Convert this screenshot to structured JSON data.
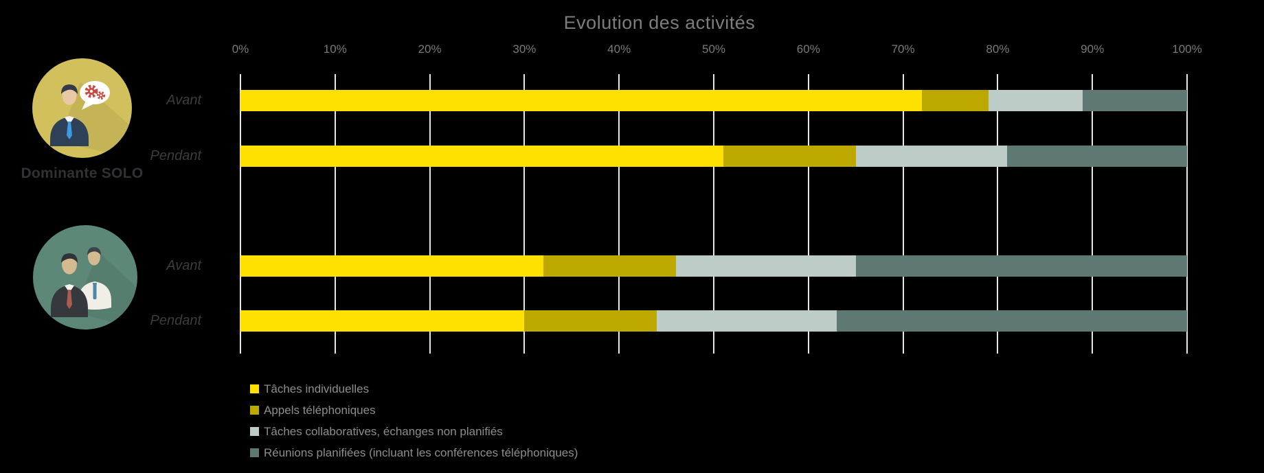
{
  "chart_data": {
    "type": "bar",
    "variant": "horizontal-100pct-stacked",
    "title": "Evolution des activités",
    "x_axis": {
      "min": 0,
      "max": 100,
      "ticks": [
        "0%",
        "10%",
        "20%",
        "30%",
        "40%",
        "50%",
        "60%",
        "70%",
        "80%",
        "90%",
        "100%"
      ],
      "grid": true,
      "gridline_color": "#e9e9e9"
    },
    "series": [
      {
        "name": "Tâches individuelles",
        "color": "#FFE100"
      },
      {
        "name": "Appels téléphoniques",
        "color": "#BDA800"
      },
      {
        "name": "Tâches collaboratives, échanges non planifiés",
        "color": "#BECCC8"
      },
      {
        "name": "Réunions planifiées (incluant les conférences téléphoniques)",
        "color": "#5E7973"
      }
    ],
    "groups": [
      {
        "label": "Dominante SOLO",
        "icon": "person-with-speech-bubble-gears-icon",
        "rows": [
          {
            "label": "Avant",
            "values": [
              72,
              7,
              10,
              11
            ]
          },
          {
            "label": "Pendant",
            "values": [
              51,
              14,
              16,
              19
            ]
          }
        ]
      },
      {
        "label": "",
        "icon": "two-people-icon",
        "rows": [
          {
            "label": "Avant",
            "values": [
              32,
              14,
              19,
              35
            ]
          },
          {
            "label": "Pendant",
            "values": [
              30,
              14,
              19,
              37
            ]
          }
        ]
      }
    ],
    "legend_position": "bottom-left"
  },
  "icons": {
    "group1": "person-with-speech-bubble-gears-icon",
    "group2": "two-people-icon"
  },
  "colors": {
    "background": "#000000",
    "title_text": "#7d7d7d",
    "tick_text": "#7a7a7a",
    "row_label_text": "#3d3d3d",
    "legend_text": "#8e8e8e",
    "group_caption_text": "#303236",
    "icon1_circle": "#D1C05C",
    "icon2_circle": "#5D8878"
  }
}
